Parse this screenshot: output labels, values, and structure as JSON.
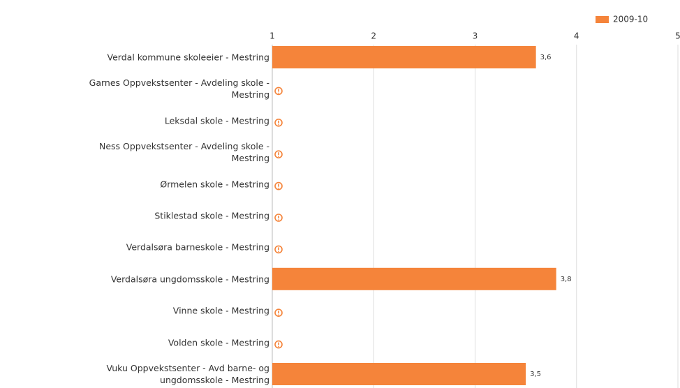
{
  "chart_data": {
    "type": "bar",
    "orientation": "horizontal",
    "categories": [
      "Verdal kommune skoleeier - Mestring",
      "Garnes Oppvekstsenter - Avdeling skole -\nMestring",
      "Leksdal skole - Mestring",
      "Ness Oppvekstsenter - Avdeling skole -\nMestring",
      "Ørmelen skole - Mestring",
      "Stiklestad skole - Mestring",
      "Verdalsøra barneskole - Mestring",
      "Verdalsøra ungdomsskole - Mestring",
      "Vinne skole - Mestring",
      "Volden skole - Mestring",
      "Vuku Oppvekstsenter - Avd barne- og\nungdomsskole - Mestring"
    ],
    "series": [
      {
        "name": "2009-10",
        "color": "#f5843a",
        "values": [
          3.6,
          null,
          null,
          null,
          null,
          null,
          null,
          3.8,
          null,
          null,
          3.5
        ],
        "value_labels": [
          "3,6",
          null,
          null,
          null,
          null,
          null,
          null,
          "3,8",
          null,
          null,
          "3,5"
        ]
      }
    ],
    "xlim": [
      1,
      5
    ],
    "xticks": [
      1,
      2,
      3,
      4,
      5
    ],
    "grid": true,
    "legend": "top-right"
  }
}
